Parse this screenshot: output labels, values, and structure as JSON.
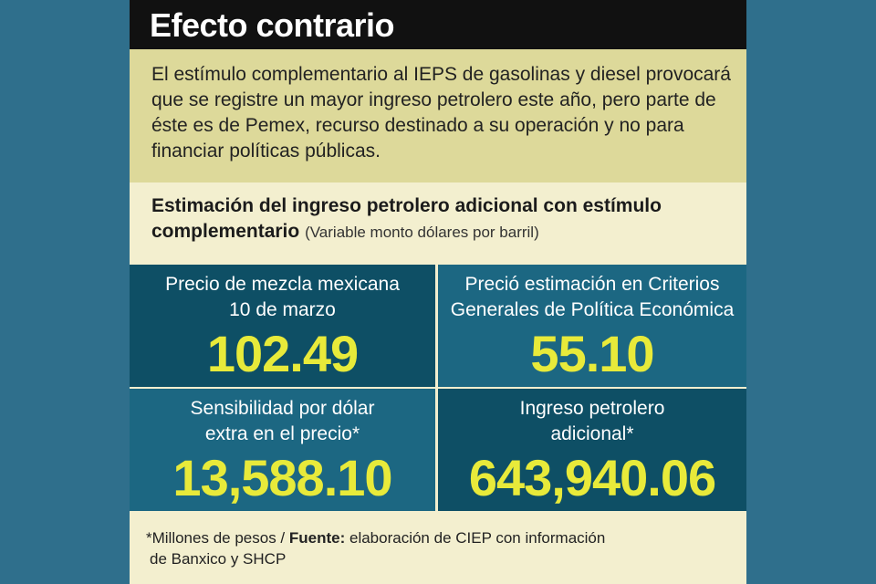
{
  "header": {
    "title": "Efecto contrario"
  },
  "intro": "El estímulo complementario al IEPS de gasolinas y diesel provocará que se registre un mayor ingreso petrolero este año, pero parte de éste es de Pemex, recurso destinado a su operación y no para financiar políticas públicas.",
  "subhead": {
    "title": "Estimación del ingreso petrolero adicional con estímulo complementario",
    "note": "(Variable monto dólares por barril)"
  },
  "cells": [
    {
      "label_1": "Precio de mezcla mexicana",
      "label_2": "10 de marzo",
      "value": "102.49"
    },
    {
      "label_1": "Preció estimación en Criterios",
      "label_2": "Generales de Política Económica",
      "value": "55.10"
    },
    {
      "label_1": "Sensibilidad por dólar",
      "label_2": "extra en el precio*",
      "value": "13,588.10"
    },
    {
      "label_1": "Ingreso petrolero",
      "label_2": "adicional*",
      "value": "643,940.06"
    }
  ],
  "footer": {
    "note": "*Millones de pesos",
    "separator": " / ",
    "source_label": "Fuente:",
    "source_text": " elaboración de CIEP con información",
    "source_text_2": "de Banxico y SHCP"
  },
  "colors": {
    "background": "#2f6f8c",
    "card": "#f3efcf",
    "intro_box": "#ddd99a",
    "dark_cell": "#0e4f65",
    "mid_cell": "#1c6782",
    "value_yellow": "#e8ea3a"
  }
}
